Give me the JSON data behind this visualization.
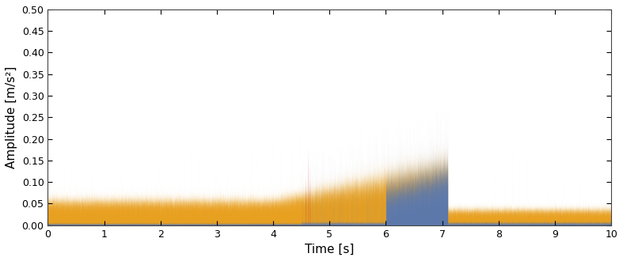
{
  "title": "",
  "xlabel": "Time [s]",
  "ylabel": "Amplitude [m/s²]",
  "xlim": [
    0,
    10
  ],
  "ylim": [
    0,
    0.5
  ],
  "xticks": [
    0,
    1,
    2,
    3,
    4,
    5,
    6,
    7,
    8,
    9,
    10
  ],
  "yticks": [
    0,
    0.05,
    0.1,
    0.15,
    0.2,
    0.25,
    0.3,
    0.35,
    0.4,
    0.45,
    0.5
  ],
  "color_x": "#4472C4",
  "color_y": "#E8A020",
  "color_z": "#CC2222",
  "n_points": 100000,
  "duration": 10.0,
  "background_color": "#FFFFFF",
  "seed": 42
}
